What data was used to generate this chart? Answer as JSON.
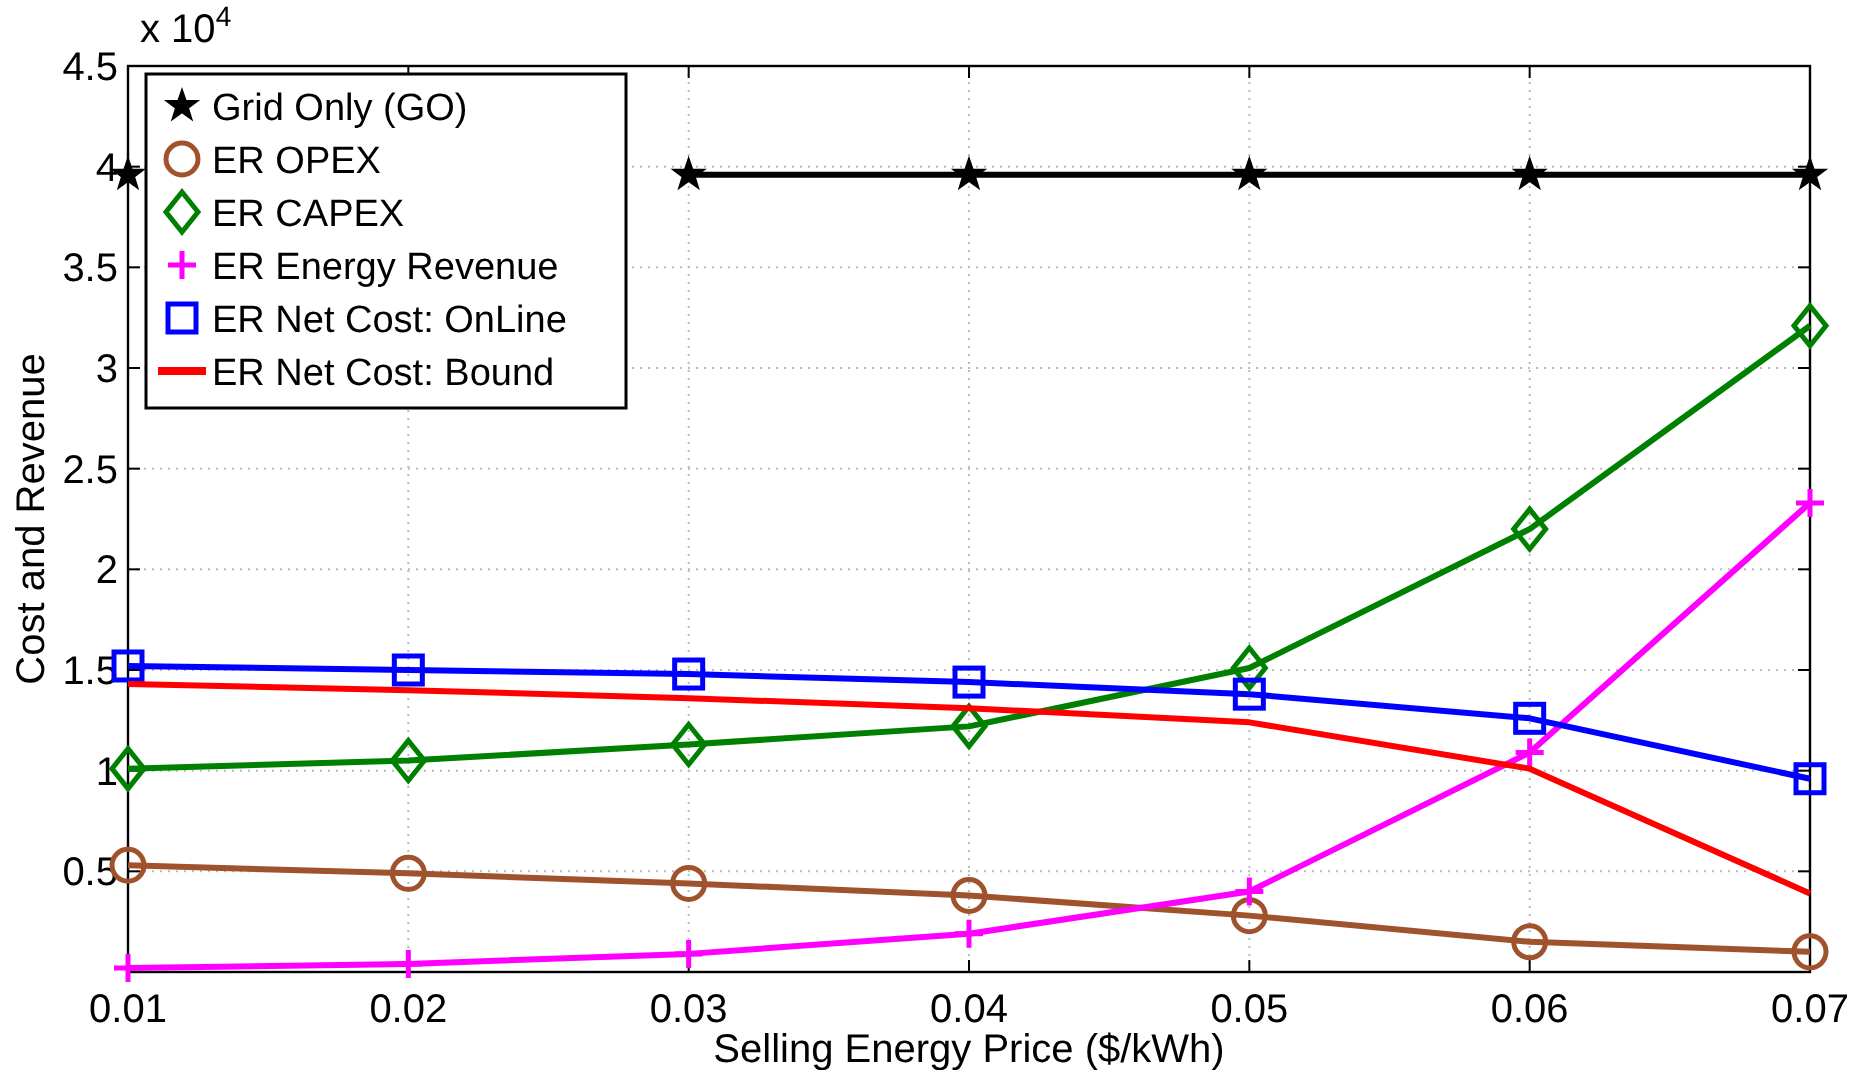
{
  "chart_data": {
    "type": "line",
    "xlabel": "Selling Energy Price ($/kWh)",
    "ylabel": "Cost and Revenue",
    "annotations": [
      "x 10$^{4}$"
    ],
    "x": [
      0.01,
      0.02,
      0.03,
      0.04,
      0.05,
      0.06,
      0.07
    ],
    "xlim": [
      0.01,
      0.07
    ],
    "xticks": [
      {
        "value": 0.01,
        "label": "0.01"
      },
      {
        "value": 0.02,
        "label": "0.02"
      },
      {
        "value": 0.03,
        "label": "0.03"
      },
      {
        "value": 0.04,
        "label": "0.04"
      },
      {
        "value": 0.05,
        "label": "0.05"
      },
      {
        "value": 0.06,
        "label": "0.06"
      },
      {
        "value": 0.07,
        "label": "0.07"
      }
    ],
    "ylim": [
      0,
      4.5
    ],
    "yticks": [
      0.5,
      1,
      1.5,
      2,
      2.5,
      3,
      3.5,
      4,
      4.5
    ],
    "grid": true,
    "legend": "top left",
    "line_style": "solid",
    "series": [
      {
        "name": "Grid Only (GO)",
        "color": "#000000",
        "marker": "star",
        "values": [
          3.96,
          null,
          3.96,
          3.96,
          3.96,
          3.96,
          3.96
        ]
      },
      {
        "name": "ER OPEX",
        "color": "#a0522d",
        "marker": "circle",
        "values": [
          0.53,
          0.49,
          0.44,
          0.38,
          0.28,
          0.15,
          0.1
        ]
      },
      {
        "name": "ER CAPEX",
        "color": "#008000",
        "marker": "diamond",
        "values": [
          1.01,
          1.05,
          1.13,
          1.22,
          1.51,
          2.2,
          3.21
        ]
      },
      {
        "name": "ER Energy Revenue",
        "color": "#ff00ff",
        "marker": "cross",
        "values": [
          0.02,
          0.04,
          0.09,
          0.19,
          0.4,
          1.09,
          2.33
        ]
      },
      {
        "name": "ER Net Cost: OnLine",
        "color": "#0000ff",
        "marker": "square",
        "values": [
          1.52,
          1.5,
          1.48,
          1.44,
          1.38,
          1.26,
          0.96
        ]
      },
      {
        "name": "ER Net Cost: Bound",
        "color": "#ff0000",
        "marker": "none",
        "values": [
          1.43,
          1.4,
          1.36,
          1.31,
          1.24,
          1.01,
          0.39
        ]
      }
    ]
  }
}
